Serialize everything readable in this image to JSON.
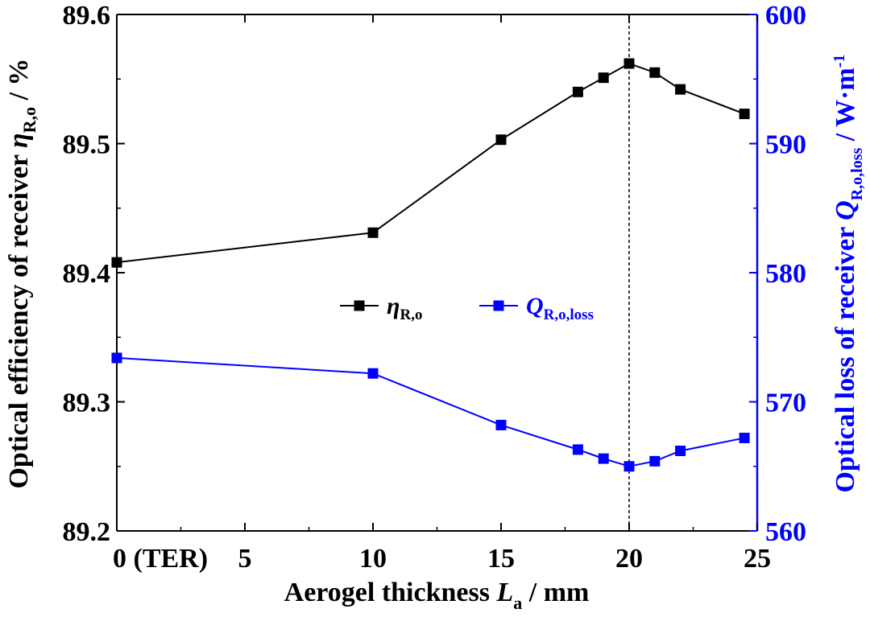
{
  "chart_data": {
    "type": "line",
    "x_ticks": [
      0,
      5,
      10,
      15,
      20,
      25
    ],
    "x_tick_labels": [
      "0 (TER)",
      "5",
      "10",
      "15",
      "20",
      "25"
    ],
    "xlim": [
      0,
      25
    ],
    "xlabel_main": "Aerogel thickness ",
    "xlabel_symbol": "L",
    "xlabel_sub": "a",
    "xlabel_unit": " / mm",
    "y_left": {
      "lim": [
        89.2,
        89.6
      ],
      "ticks": [
        89.2,
        89.3,
        89.4,
        89.5,
        89.6
      ],
      "tick_labels": [
        "89.2",
        "89.3",
        "89.4",
        "89.5",
        "89.6"
      ],
      "label_main": "Optical efficiency of receiver ",
      "label_symbol": "η",
      "label_sub": "R,o",
      "label_unit": " / %",
      "color": "#000000"
    },
    "y_right": {
      "lim": [
        560,
        600
      ],
      "ticks": [
        560,
        570,
        580,
        590,
        600
      ],
      "tick_labels": [
        "560",
        "570",
        "580",
        "590",
        "600"
      ],
      "label_main": "Optical loss of receiver ",
      "label_symbol": "Q",
      "label_sub": "R,o,loss",
      "label_unit": " / W·m",
      "label_sup": "-1",
      "color": "#0000ff"
    },
    "series": [
      {
        "name_symbol": "η",
        "name_sub": "R,o",
        "axis": "left",
        "color": "#000000",
        "x": [
          0,
          10,
          15,
          18,
          19,
          20,
          21,
          22,
          24.5
        ],
        "y": [
          89.408,
          89.431,
          89.503,
          89.54,
          89.551,
          89.562,
          89.555,
          89.542,
          89.523
        ]
      },
      {
        "name_symbol": "Q",
        "name_sub": "R,o,loss",
        "axis": "right",
        "color": "#0000ff",
        "x": [
          0,
          10,
          15,
          18,
          19,
          20,
          21,
          22,
          24.5
        ],
        "y": [
          573.4,
          572.2,
          568.2,
          566.3,
          565.6,
          565.0,
          565.4,
          566.2,
          567.2
        ]
      }
    ],
    "reference_line_x": 20,
    "legend_position": "center"
  }
}
